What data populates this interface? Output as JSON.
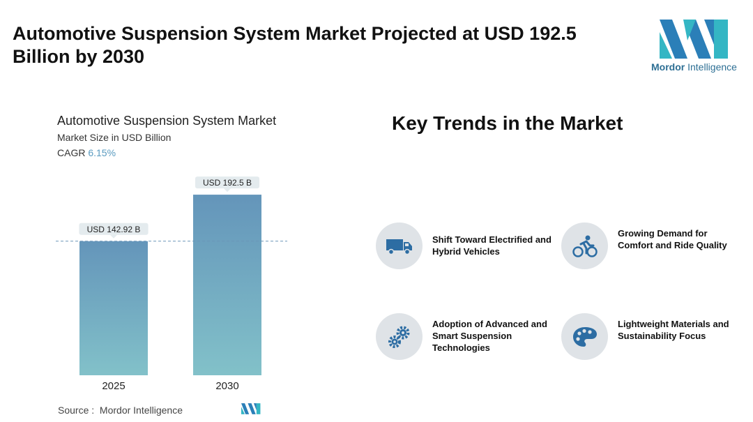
{
  "header": {
    "title": "Automotive Suspension System Market Projected at USD 192.5 Billion by 2030"
  },
  "logo": {
    "word1": "Mordor",
    "word2": "Intelligence"
  },
  "chart_data": {
    "type": "bar",
    "title": "Automotive Suspension System Market",
    "subtitle": "Market Size in USD Billion",
    "cagr_label": "CAGR",
    "cagr_value": "6.15%",
    "categories": [
      "2025",
      "2030"
    ],
    "values": [
      142.92,
      192.5
    ],
    "data_labels": [
      "USD 142.92 B",
      "USD 192.5 B"
    ],
    "ylim": [
      0,
      200
    ],
    "grid": false,
    "reference_line": 142.92,
    "colors": {
      "bar_top": "#6495ba",
      "bar_bottom": "#82c1c9",
      "label_bg": "#e4ebee",
      "ref_line": "#6a96b8"
    }
  },
  "source": {
    "label": "Source :",
    "name": "Mordor Intelligence"
  },
  "trends": {
    "title": "Key Trends in the Market",
    "items": [
      {
        "label": "Shift Toward Electrified and Hybrid Vehicles",
        "icon": "truck-icon"
      },
      {
        "label": "Growing Demand for Comfort and Ride Quality",
        "icon": "cyclist-icon"
      },
      {
        "label": "Adoption of Advanced and Smart Suspension Technologies",
        "icon": "gears-icon"
      },
      {
        "label": "Lightweight Materials and Sustainability Focus",
        "icon": "palette-icon"
      }
    ]
  }
}
